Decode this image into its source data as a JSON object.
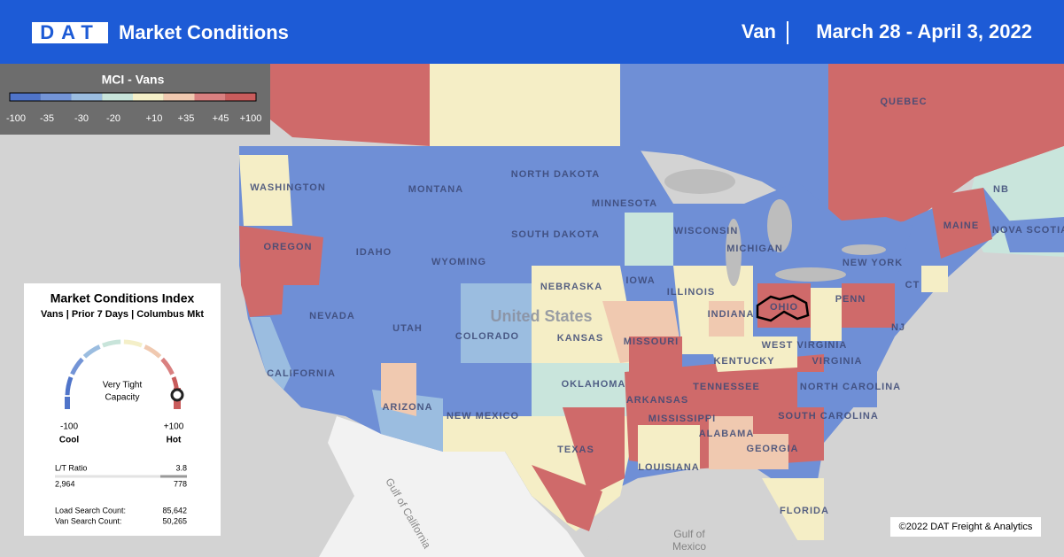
{
  "header": {
    "logo": "DAT",
    "title": "Market Conditions",
    "equipment": "Van",
    "date_range": "March 28 - April 3, 2022"
  },
  "legend": {
    "title": "MCI - Vans",
    "ticks": [
      "-100",
      "-35",
      "-30",
      "-20",
      "+10",
      "+35",
      "+45",
      "+100"
    ],
    "colors": [
      "#4f74c9",
      "#7394d6",
      "#9bbde0",
      "#c8e4da",
      "#f4efc8",
      "#f0c9b0",
      "#d98080",
      "#c95c5c"
    ]
  },
  "card": {
    "title": "Market Conditions Index",
    "subtitle": "Vans | Prior 7 Days | Columbus Mkt",
    "status_line1": "Very Tight",
    "status_line2": "Capacity",
    "min_value": "-100",
    "min_label": "Cool",
    "max_value": "+100",
    "max_label": "Hot",
    "ratio_label": "L/T Ratio",
    "ratio_value": "3.8",
    "loads": "2,964",
    "trucks": "778",
    "load_search_label": "Load Search Count:",
    "load_search_value": "85,642",
    "van_search_label": "Van Search Count:",
    "van_search_value": "50,265"
  },
  "map_labels": [
    "WASHINGTON",
    "MONTANA",
    "NORTH DAKOTA",
    "MINNESOTA",
    "OREGON",
    "IDAHO",
    "WYOMING",
    "SOUTH DAKOTA",
    "WISCONSIN",
    "MICHIGAN",
    "NEW YORK",
    "NEVADA",
    "UTAH",
    "COLORADO",
    "NEBRASKA",
    "IOWA",
    "United States",
    "KANSAS",
    "ILLINOIS",
    "INDIANA",
    "OHIO",
    "PENN",
    "NJ",
    "MISSOURI",
    "KENTUCKY",
    "WEST VIRGINIA",
    "VIRGINIA",
    "CALIFORNIA",
    "ARIZONA",
    "NEW MEXICO",
    "OKLAHOMA",
    "TENNESSEE",
    "NORTH CAROLINA",
    "ARKANSAS",
    "MISSISSIPPI",
    "SOUTH CAROLINA",
    "ALABAMA",
    "GEORGIA",
    "TEXAS",
    "LOUISIANA",
    "FLORIDA",
    "MAINE",
    "QUEBEC",
    "NB",
    "NOVA SCOTIA",
    "CT",
    "Gulf of",
    "Mexico",
    "Gulf of California"
  ],
  "copyright": "©2022 DAT Freight & Analytics"
}
